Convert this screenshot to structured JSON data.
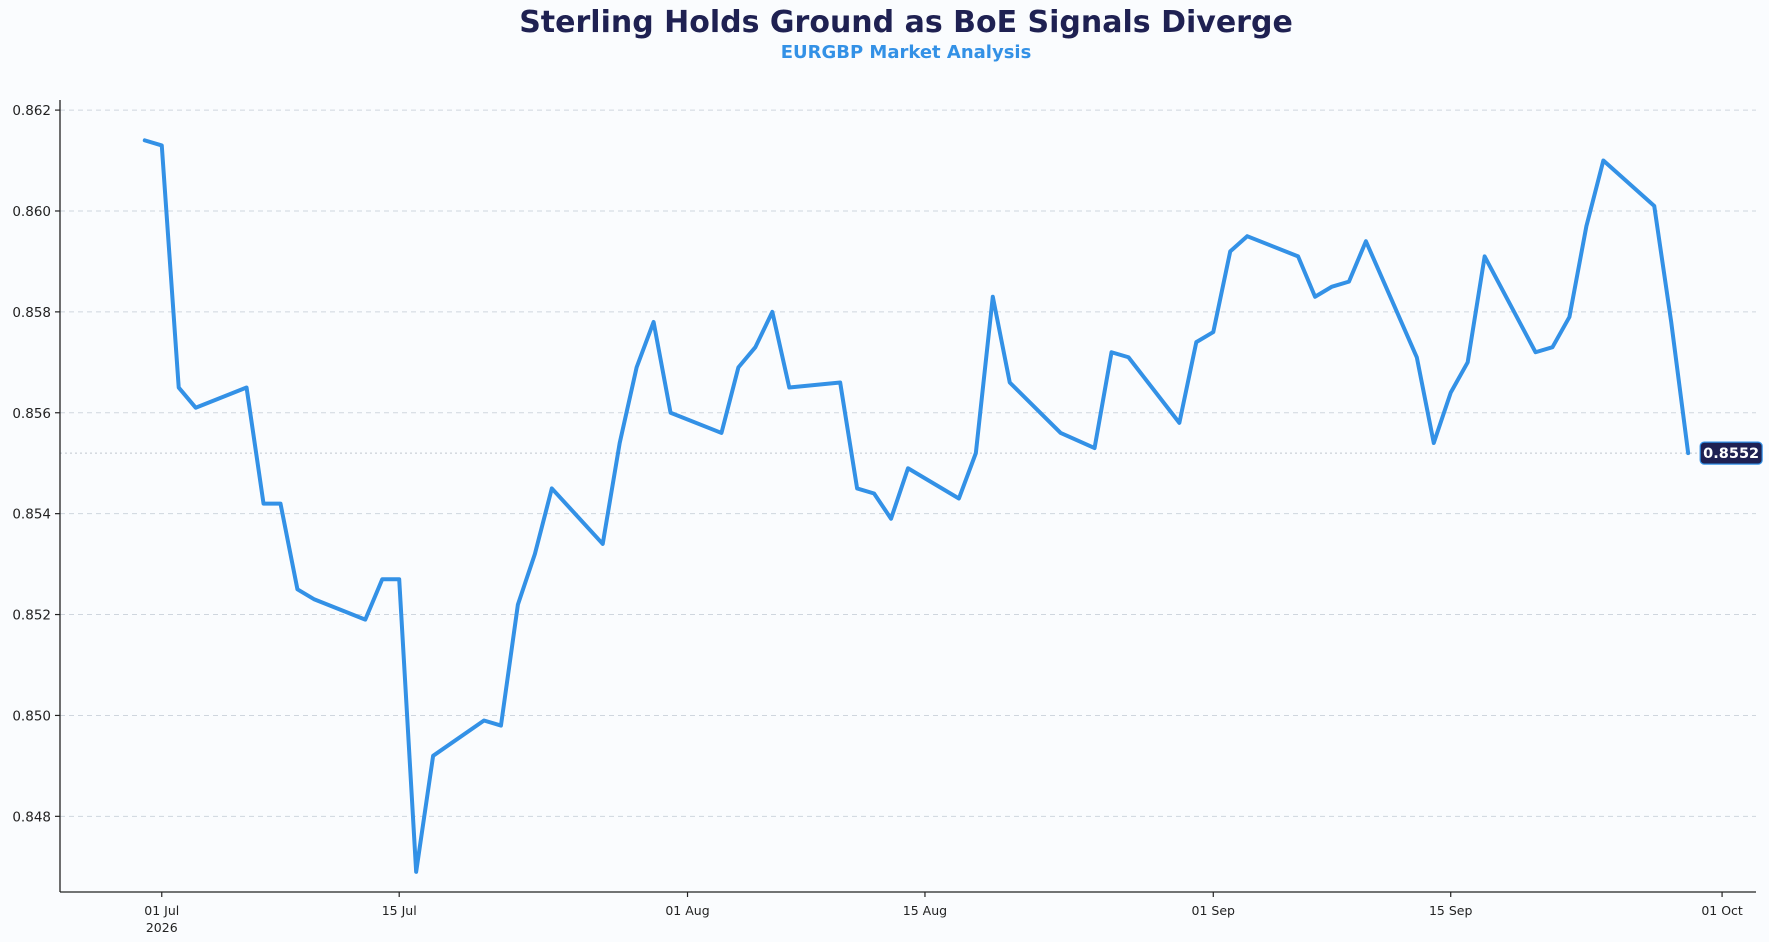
{
  "colors": {
    "background": "#fafcfe",
    "title": "#1f2152",
    "accent": "#3391e6",
    "badge_bg": "#1f2152",
    "grid": "#cfd6de"
  },
  "chart_data": {
    "type": "line",
    "title": "Sterling Holds Ground as BoE Signals Diverge",
    "subtitle": "EURGBP Market Analysis",
    "xlabel": "",
    "ylabel": "",
    "ylim": [
      0.8465,
      0.8622
    ],
    "xlim": [
      "2026-06-25",
      "2026-10-03"
    ],
    "yticks": [
      0.848,
      0.85,
      0.852,
      0.854,
      0.856,
      0.858,
      0.86,
      0.862
    ],
    "ytick_labels": [
      "0.848",
      "0.850",
      "0.852",
      "0.854",
      "0.856",
      "0.858",
      "0.860",
      "0.862"
    ],
    "xticks": [
      "2026-07-01",
      "2026-07-15",
      "2026-08-01",
      "2026-08-15",
      "2026-09-01",
      "2026-09-15",
      "2026-10-01"
    ],
    "xtick_labels": [
      "01 Jul",
      "15 Jul",
      "01 Aug",
      "15 Aug",
      "01 Sep",
      "15 Sep",
      "01 Oct"
    ],
    "xtick_year_label": "2026",
    "grid": "horizontal dashed",
    "legend": "none",
    "last_value_label": "0.8552",
    "series": [
      {
        "x": [
          "2026-06-30",
          "2026-07-01",
          "2026-07-02",
          "2026-07-03",
          "2026-07-06",
          "2026-07-07",
          "2026-07-08",
          "2026-07-09",
          "2026-07-10",
          "2026-07-13",
          "2026-07-14",
          "2026-07-15",
          "2026-07-16",
          "2026-07-17",
          "2026-07-20",
          "2026-07-21",
          "2026-07-22",
          "2026-07-23",
          "2026-07-24",
          "2026-07-27",
          "2026-07-28",
          "2026-07-29",
          "2026-07-30",
          "2026-07-31",
          "2026-08-03",
          "2026-08-04",
          "2026-08-05",
          "2026-08-06",
          "2026-08-07",
          "2026-08-10",
          "2026-08-11",
          "2026-08-12",
          "2026-08-13",
          "2026-08-14",
          "2026-08-17",
          "2026-08-18",
          "2026-08-19",
          "2026-08-20",
          "2026-08-23",
          "2026-08-25",
          "2026-08-26",
          "2026-08-27",
          "2026-08-30",
          "2026-08-31",
          "2026-09-01",
          "2026-09-02",
          "2026-09-03",
          "2026-09-06",
          "2026-09-07",
          "2026-09-08",
          "2026-09-09",
          "2026-09-10",
          "2026-09-13",
          "2026-09-14",
          "2026-09-15",
          "2026-09-16",
          "2026-09-17",
          "2026-09-20",
          "2026-09-21",
          "2026-09-22",
          "2026-09-23",
          "2026-09-24",
          "2026-09-27",
          "2026-09-28",
          "2026-09-29"
        ],
        "values": [
          0.8614,
          0.8613,
          0.8565,
          0.8561,
          0.8565,
          0.8542,
          0.8542,
          0.8525,
          0.8523,
          0.8519,
          0.8527,
          0.8527,
          0.8469,
          0.8492,
          0.8499,
          0.8498,
          0.8522,
          0.8532,
          0.8545,
          0.8534,
          0.8554,
          0.8569,
          0.8578,
          0.856,
          0.8556,
          0.8569,
          0.8573,
          0.858,
          0.8565,
          0.8566,
          0.8545,
          0.8544,
          0.8539,
          0.8549,
          0.8543,
          0.8552,
          0.8583,
          0.8566,
          0.8556,
          0.8553,
          0.8572,
          0.8571,
          0.8558,
          0.8574,
          0.8576,
          0.8592,
          0.8595,
          0.8591,
          0.8583,
          0.8585,
          0.8586,
          0.8594,
          0.8571,
          0.8554,
          0.8564,
          0.857,
          0.8591,
          0.8572,
          0.8573,
          0.8579,
          0.8597,
          0.861,
          0.8601,
          0.8578,
          0.8552
        ]
      }
    ]
  }
}
